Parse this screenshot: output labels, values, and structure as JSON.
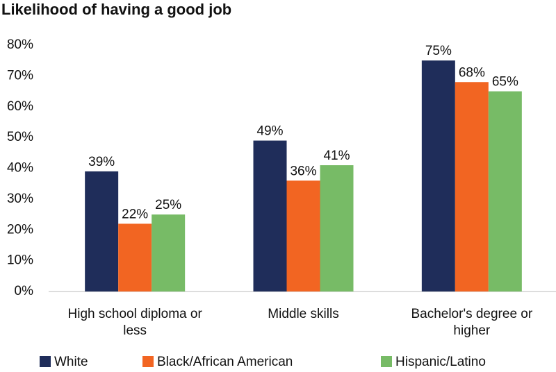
{
  "chart_data": {
    "type": "bar",
    "title": "Likelihood of having a good job",
    "categories": [
      "High school diploma or less",
      "Middle skills",
      "Bachelor's degree or higher"
    ],
    "series": [
      {
        "name": "White",
        "color": "#1f2d5a",
        "values": [
          39,
          49,
          75
        ],
        "value_labels": [
          "39%",
          "49%",
          "75%"
        ]
      },
      {
        "name": "Black/African American",
        "color": "#f26522",
        "values": [
          22,
          36,
          68
        ],
        "value_labels": [
          "22%",
          "36%",
          "68%"
        ]
      },
      {
        "name": "Hispanic/Latino",
        "color": "#77bb66",
        "values": [
          25,
          41,
          65
        ],
        "value_labels": [
          "25%",
          "41%",
          "65%"
        ]
      }
    ],
    "ylim": [
      0,
      80
    ],
    "yticks": [
      {
        "value": 0,
        "label": "0%"
      },
      {
        "value": 10,
        "label": "10%"
      },
      {
        "value": 20,
        "label": "20%"
      },
      {
        "value": 30,
        "label": "30%"
      },
      {
        "value": 40,
        "label": "40%"
      },
      {
        "value": 50,
        "label": "50%"
      },
      {
        "value": 60,
        "label": "60%"
      },
      {
        "value": 70,
        "label": "70%"
      },
      {
        "value": 80,
        "label": "80%"
      }
    ],
    "grid": false,
    "legend": "bottom"
  }
}
